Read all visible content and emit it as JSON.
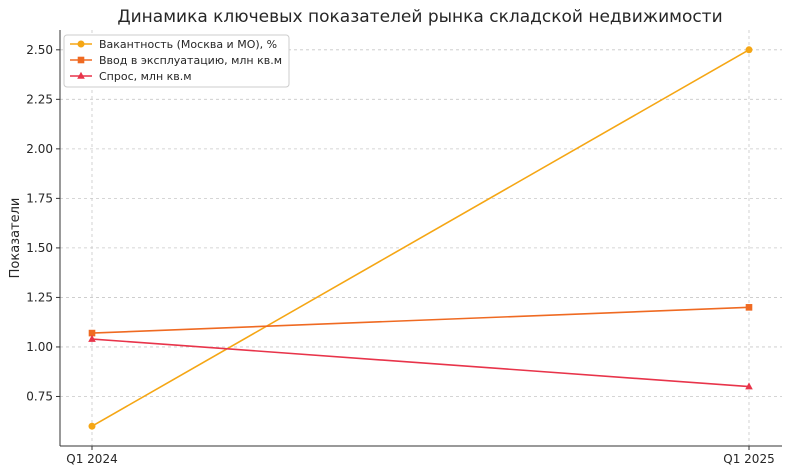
{
  "chart_data": {
    "type": "line",
    "title": "Динамика ключевых показателей рынка складской недвижимости",
    "xlabel": "",
    "ylabel": "Показатели",
    "categories": [
      "Q1 2024",
      "Q1 2025"
    ],
    "ylim": [
      0.5,
      2.6
    ],
    "yticks": [
      "0.75",
      "1.00",
      "1.25",
      "1.50",
      "1.75",
      "2.00",
      "2.25",
      "2.50"
    ],
    "grid": true,
    "legend_position": "top-left",
    "series": [
      {
        "name": "Вакантность (Москва и МО), %",
        "values": [
          0.6,
          2.5
        ],
        "color": "#f5a614",
        "marker": "circle"
      },
      {
        "name": "Ввод в эксплуатацию, млн кв.м",
        "values": [
          1.07,
          1.2
        ],
        "color": "#ef6a22",
        "marker": "square"
      },
      {
        "name": "Спрос, млн кв.м",
        "values": [
          1.04,
          0.8
        ],
        "color": "#e8344a",
        "marker": "triangle"
      }
    ]
  }
}
